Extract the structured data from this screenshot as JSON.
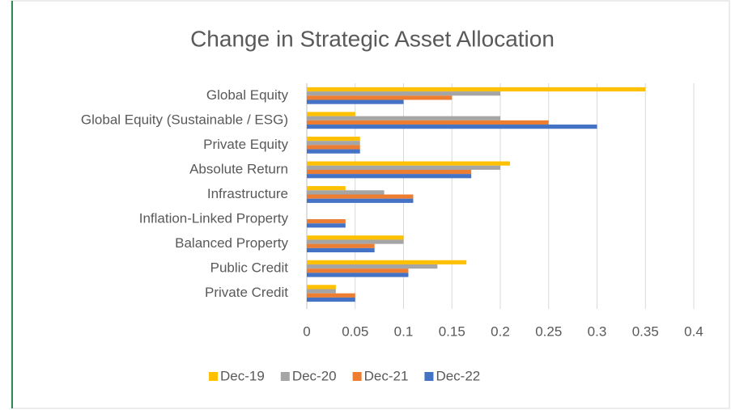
{
  "chart_data": {
    "type": "bar",
    "orientation": "horizontal",
    "title": "Change in Strategic Asset Allocation",
    "categories": [
      "Global Equity",
      "Global Equity (Sustainable / ESG)",
      "Private Equity",
      "Absolute Return",
      "Infrastructure",
      "Inflation-Linked Property",
      "Balanced Property",
      "Public Credit",
      "Private Credit"
    ],
    "series": [
      {
        "name": "Dec-19",
        "color": "#ffc000",
        "values": [
          0.35,
          0.05,
          0.055,
          0.21,
          0.04,
          0,
          0.1,
          0.165,
          0.03
        ]
      },
      {
        "name": "Dec-20",
        "color": "#a5a5a5",
        "values": [
          0.2,
          0.2,
          0.055,
          0.2,
          0.08,
          0,
          0.1,
          0.135,
          0.03
        ]
      },
      {
        "name": "Dec-21",
        "color": "#ed7d31",
        "values": [
          0.15,
          0.25,
          0.055,
          0.17,
          0.11,
          0.04,
          0.07,
          0.105,
          0.05
        ]
      },
      {
        "name": "Dec-22",
        "color": "#4472c4",
        "values": [
          0.1,
          0.3,
          0.055,
          0.17,
          0.11,
          0.04,
          0.07,
          0.105,
          0.05
        ]
      }
    ],
    "xlim": [
      0,
      0.4
    ],
    "xticks": [
      0,
      0.05,
      0.1,
      0.15,
      0.2,
      0.25,
      0.3,
      0.35,
      0.4
    ],
    "grid": true,
    "legend": "bottom"
  }
}
